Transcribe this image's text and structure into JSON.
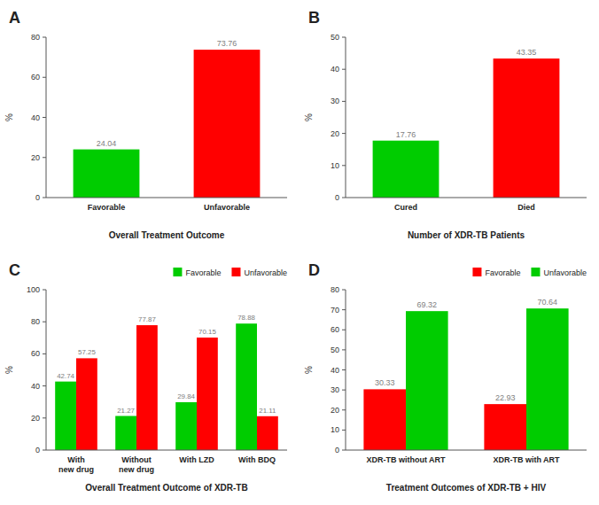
{
  "chart_data": [
    {
      "type": "bar",
      "title": "A",
      "xlabel": "Overall Treatment Outcome",
      "ylabel": "%",
      "categories": [
        "Favorable",
        "Unfavorable"
      ],
      "values": [
        24.04,
        73.76
      ],
      "colors": [
        "#00CC00",
        "#FF0000"
      ],
      "ylim": [
        0,
        80
      ],
      "yticks": [
        0,
        20,
        40,
        60,
        80
      ],
      "grid": false,
      "data_labels": true
    },
    {
      "type": "bar",
      "title": "B",
      "xlabel": "Number of XDR-TB Patients",
      "ylabel": "%",
      "categories": [
        "Cured",
        "Died"
      ],
      "values": [
        17.76,
        43.35
      ],
      "colors": [
        "#00CC00",
        "#FF0000"
      ],
      "ylim": [
        0,
        50
      ],
      "yticks": [
        0,
        10,
        20,
        30,
        40,
        50
      ],
      "grid": false,
      "data_labels": true
    },
    {
      "type": "bar",
      "title": "C",
      "xlabel": "Overall Treatment Outcome of XDR-TB",
      "ylabel": "%",
      "categories": [
        "With new drug",
        "Without new drug",
        "With LZD",
        "With BDQ"
      ],
      "series": [
        {
          "name": "Favorable",
          "color": "#00CC00",
          "values": [
            42.74,
            21.27,
            29.84,
            78.88
          ]
        },
        {
          "name": "Unfavorable",
          "color": "#FF0000",
          "values": [
            57.25,
            77.87,
            70.15,
            21.11
          ]
        }
      ],
      "ylim": [
        0,
        100
      ],
      "yticks": [
        0,
        20,
        40,
        60,
        80,
        100
      ],
      "grid": false,
      "legend": "upper right",
      "data_labels": true
    },
    {
      "type": "bar",
      "title": "D",
      "xlabel": "Treatment Outcomes of XDR-TB + HIV",
      "ylabel": "%",
      "categories": [
        "XDR-TB without ART",
        "XDR-TB with ART"
      ],
      "series": [
        {
          "name": "Favorable",
          "color": "#FF0000",
          "values": [
            30.33,
            22.93
          ]
        },
        {
          "name": "Unfavorable",
          "color": "#00CC00",
          "values": [
            69.32,
            70.64
          ]
        }
      ],
      "ylim": [
        0,
        80
      ],
      "yticks": [
        0,
        10,
        20,
        30,
        40,
        50,
        60,
        70,
        80
      ],
      "grid": false,
      "legend": "upper right",
      "data_labels": true
    }
  ]
}
